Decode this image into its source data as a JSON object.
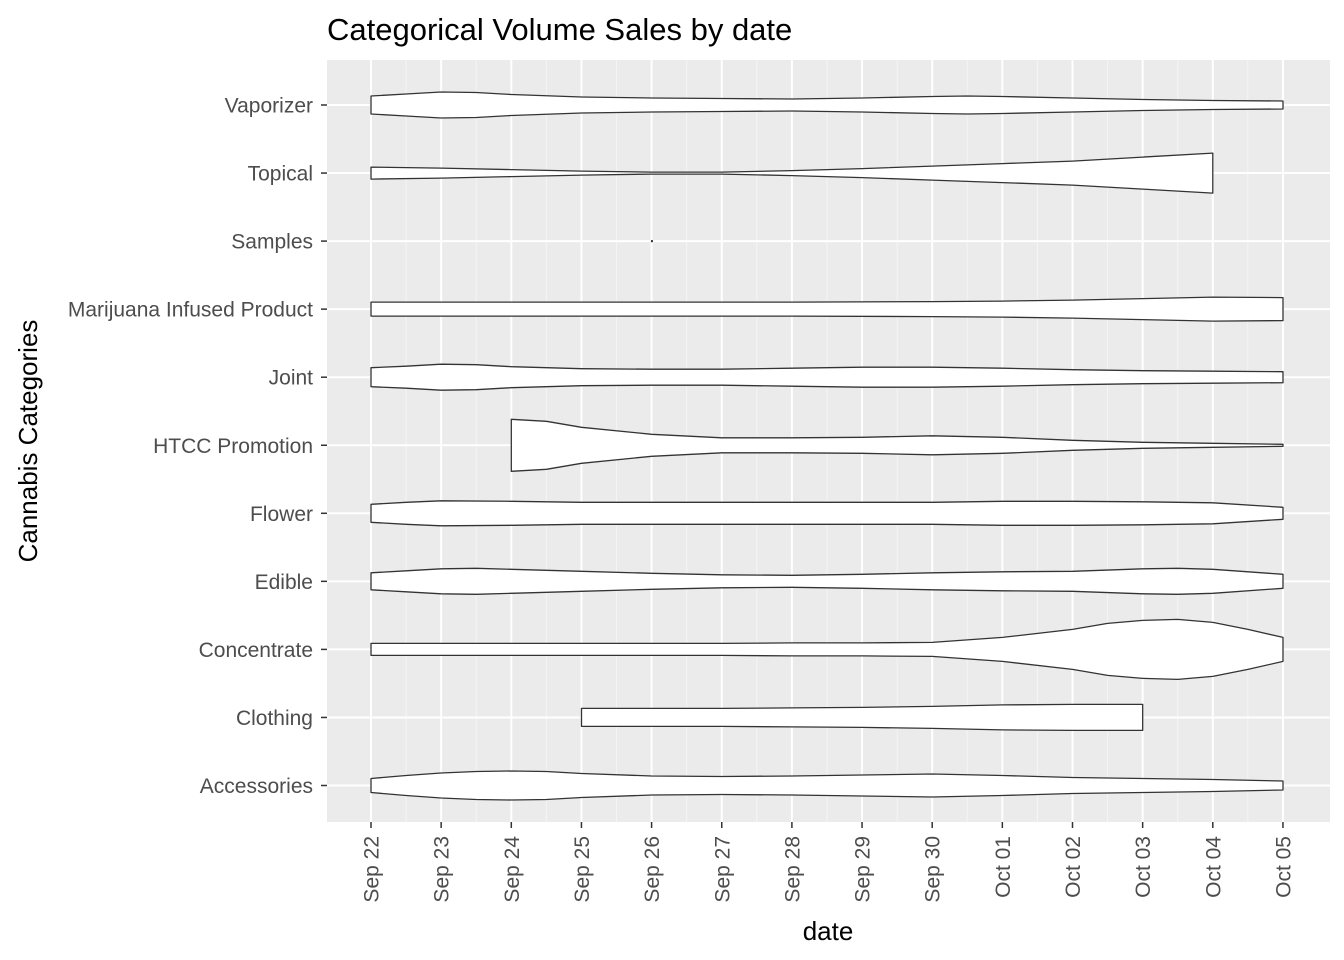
{
  "chart_data": {
    "type": "violin",
    "title": "Categorical Volume Sales by date",
    "xlabel": "date",
    "ylabel": "Cannabis Categories",
    "x_ticks": [
      "Sep 22",
      "Sep 23",
      "Sep 24",
      "Sep 25",
      "Sep 26",
      "Sep 27",
      "Sep 28",
      "Sep 29",
      "Sep 30",
      "Oct 01",
      "Oct 02",
      "Oct 03",
      "Oct 04",
      "Oct 05"
    ],
    "xlim": [
      "Sep 21 (approx.)",
      "Oct 05 (approx.)"
    ],
    "categories": [
      "Accessories",
      "Clothing",
      "Concentrate",
      "Edible",
      "Flower",
      "HTCC Promotion",
      "Joint",
      "Marijuana Infused Product",
      "Samples",
      "Topical",
      "Vaporizer"
    ],
    "series": [
      {
        "category": "Accessories",
        "x_min": "Sep 22",
        "x_max": "Oct 05",
        "peak": "Sep 24"
      },
      {
        "category": "Clothing",
        "x_min": "Sep 25",
        "x_max": "Oct 03",
        "peak": "Oct 01"
      },
      {
        "category": "Concentrate",
        "x_min": "Sep 22",
        "x_max": "Oct 05",
        "peak": "Oct 03"
      },
      {
        "category": "Edible",
        "x_min": "Sep 22",
        "x_max": "Oct 05",
        "peak": "Sep 24"
      },
      {
        "category": "Flower",
        "x_min": "Sep 22",
        "x_max": "Oct 05",
        "peak": "Sep 24"
      },
      {
        "category": "HTCC Promotion",
        "x_min": "Sep 24",
        "x_max": "Oct 05",
        "peak": "Sep 24"
      },
      {
        "category": "Joint",
        "x_min": "Sep 22",
        "x_max": "Oct 05",
        "peak": "Sep 23"
      },
      {
        "category": "Marijuana Infused Product",
        "x_min": "Sep 22",
        "x_max": "Oct 05",
        "peak": "Oct 04"
      },
      {
        "category": "Samples",
        "x_min": "Sep 26",
        "x_max": "Sep 26",
        "peak": "Sep 26"
      },
      {
        "category": "Topical",
        "x_min": "Sep 22",
        "x_max": "Oct 04",
        "peak": "Oct 04"
      },
      {
        "category": "Vaporizer",
        "x_min": "Sep 22",
        "x_max": "Oct 05",
        "peak": "Sep 23"
      }
    ],
    "grid": true,
    "legend": "none",
    "colors": {
      "panel_background": "#ebebeb",
      "grid_major": "#ffffff",
      "grid_minor": "#f5f5f5",
      "violin_fill": "#ffffff",
      "violin_stroke": "#333333",
      "tick_label": "#4d4d4d",
      "tick_mark": "#333333"
    }
  }
}
